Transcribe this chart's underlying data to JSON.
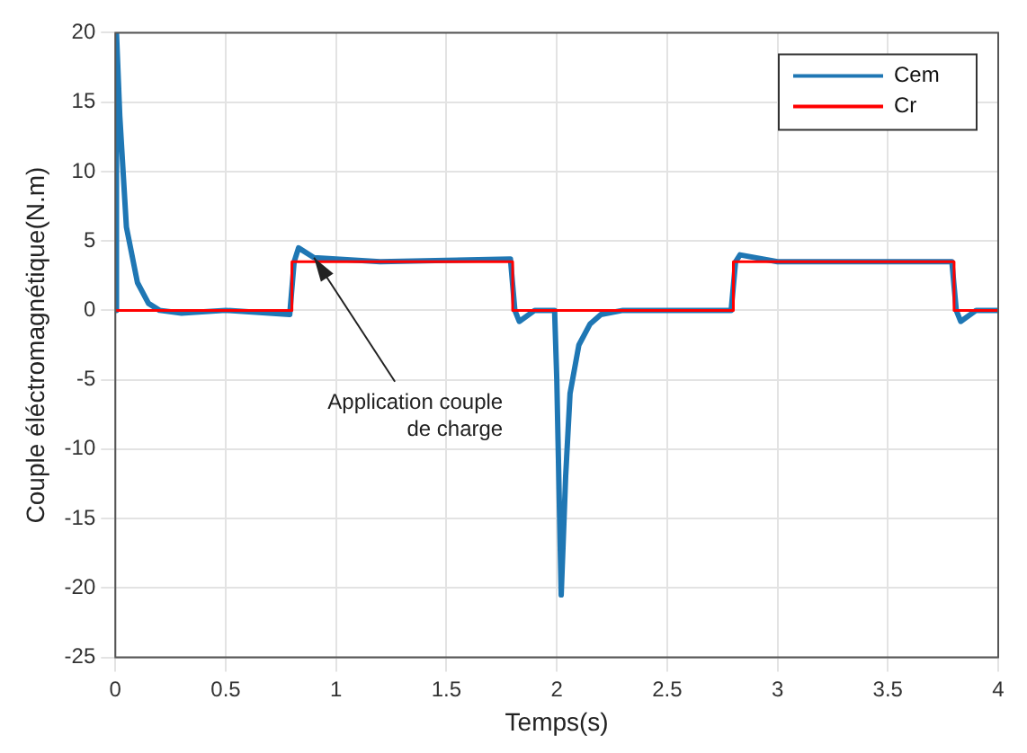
{
  "chart_data": {
    "type": "line",
    "xlabel": "Temps(s)",
    "ylabel": "Couple éléctromagnétique(N.m)",
    "xlim": [
      0,
      4
    ],
    "xticks": [
      0,
      0.5,
      1,
      1.5,
      2,
      2.5,
      3,
      3.5,
      4
    ],
    "ylim": [
      -25,
      20
    ],
    "yticks": [
      -25,
      -20,
      -15,
      -10,
      -5,
      0,
      5,
      10,
      15,
      20
    ],
    "grid": true,
    "legend": "top right",
    "marker": "none",
    "line_style": "solid",
    "annotations": [
      {
        "text": "Application couple\nde charge",
        "x": 0.9,
        "y": 3.8
      }
    ],
    "series": [
      {
        "name": "Cem",
        "color": "#1f77b4",
        "x": [
          0,
          0.005,
          0.02,
          0.05,
          0.1,
          0.15,
          0.2,
          0.3,
          0.5,
          0.79,
          0.81,
          0.83,
          0.9,
          1.2,
          1.5,
          1.79,
          1.81,
          1.83,
          1.9,
          1.99,
          2.0,
          2.02,
          2.04,
          2.06,
          2.1,
          2.15,
          2.2,
          2.3,
          2.79,
          2.81,
          2.83,
          3.0,
          3.5,
          3.79,
          3.81,
          3.83,
          3.9,
          4
        ],
        "values": [
          0,
          20,
          14,
          6,
          2,
          0.5,
          0,
          -0.2,
          0,
          -0.3,
          3.5,
          4.5,
          3.8,
          3.5,
          3.6,
          3.7,
          0,
          -0.8,
          0,
          0,
          -5,
          -20.5,
          -12,
          -6,
          -2.5,
          -1,
          -0.3,
          0,
          0,
          3.5,
          4,
          3.5,
          3.5,
          3.5,
          0,
          -0.8,
          0,
          0
        ]
      },
      {
        "name": "Cr",
        "color": "#ff0000",
        "x": [
          0,
          0.8,
          0.8,
          1.8,
          1.8,
          2.8,
          2.8,
          3.8,
          3.8,
          4
        ],
        "values": [
          0,
          0,
          3.5,
          3.5,
          0,
          0,
          3.5,
          3.5,
          0,
          0
        ]
      }
    ]
  }
}
